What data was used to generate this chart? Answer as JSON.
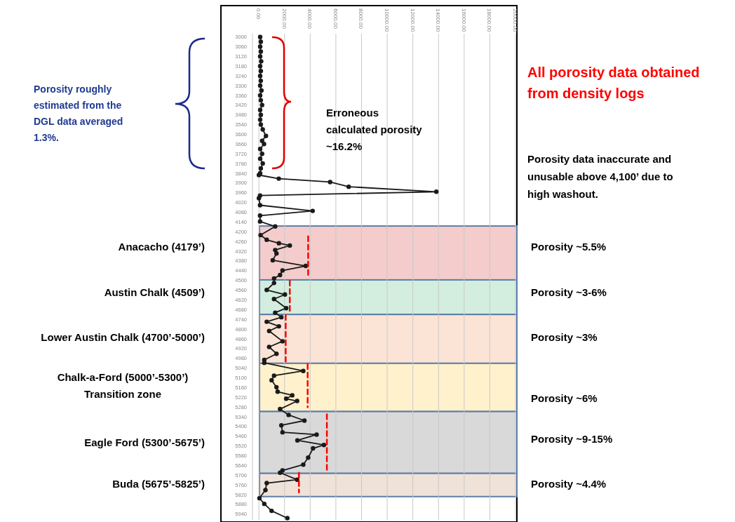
{
  "chart_data": {
    "type": "line",
    "orientation": "horizontal",
    "xlim": [
      -500,
      20000
    ],
    "xticks": [
      {
        "value": 0,
        "label": "0.00"
      },
      {
        "value": 2000,
        "label": "2000.00"
      },
      {
        "value": 4000,
        "label": "4000.00"
      },
      {
        "value": 6000,
        "label": "6000.00"
      },
      {
        "value": 8000,
        "label": "8000.00"
      },
      {
        "value": 10000,
        "label": "10000.00"
      },
      {
        "value": 12000,
        "label": "12000.00"
      },
      {
        "value": 14000,
        "label": "14000.00"
      },
      {
        "value": 16000,
        "label": "16000.00"
      },
      {
        "value": 18000,
        "label": "18000.00"
      },
      {
        "value": 20000,
        "label": "20000.00"
      }
    ],
    "ylim": [
      5980,
      2980
    ],
    "yticks": [
      3000,
      3060,
      3120,
      3180,
      3240,
      3300,
      3360,
      3420,
      3480,
      3540,
      3600,
      3660,
      3720,
      3780,
      3840,
      3900,
      3960,
      4020,
      4080,
      4140,
      4200,
      4260,
      4320,
      4380,
      4440,
      4500,
      4560,
      4620,
      4680,
      4740,
      4800,
      4860,
      4920,
      4980,
      5040,
      5100,
      5160,
      5220,
      5280,
      5340,
      5400,
      5460,
      5520,
      5580,
      5640,
      5700,
      5760,
      5820,
      5880,
      5940
    ],
    "grid": "x",
    "series": [
      {
        "color": "#1a1a1a",
        "marker": "circle",
        "values": [
          100,
          150,
          100,
          150,
          100,
          180,
          100,
          150,
          100,
          150,
          100,
          200,
          100,
          150,
          250,
          100,
          150,
          100,
          150,
          300,
          550,
          250,
          400,
          100,
          250,
          100,
          300,
          150,
          100,
          0,
          1550,
          5550,
          7000,
          13830,
          90,
          0,
          90,
          4190,
          90,
          90,
          1270,
          130,
          610,
          1560,
          2410,
          1270,
          1370,
          1080,
          3650,
          1840,
          1650,
          1180,
          1180,
          610,
          2030,
          1180,
          2130,
          1270,
          1750,
          610,
          1560,
          800,
          1840,
          800,
          1370,
          420,
          420,
          3460,
          1180,
          990,
          1370,
          1460,
          2600,
          2130,
          2980,
          1650,
          2320,
          3550,
          1750,
          1840,
          4500,
          3000,
          5070,
          4220,
          3840,
          3460,
          1840,
          1650,
          2980,
          610,
          510,
          40,
          420,
          990,
          2220
        ],
        "x": [
          3000,
          3030,
          3060,
          3090,
          3120,
          3150,
          3180,
          3210,
          3240,
          3270,
          3300,
          3330,
          3360,
          3390,
          3420,
          3450,
          3480,
          3510,
          3540,
          3570,
          3610,
          3640,
          3660,
          3690,
          3720,
          3750,
          3780,
          3810,
          3840,
          3851,
          3873,
          3894,
          3923,
          3954,
          3977,
          3994,
          4037,
          4072,
          4101,
          4137,
          4168,
          4221,
          4250,
          4271,
          4285,
          4313,
          4334,
          4376,
          4411,
          4439,
          4467,
          4488,
          4516,
          4559,
          4587,
          4615,
          4671,
          4699,
          4727,
          4755,
          4783,
          4812,
          4875,
          4910,
          4952,
          4990,
          5008,
          5058,
          5087,
          5115,
          5158,
          5186,
          5208,
          5229,
          5243,
          5293,
          5329,
          5364,
          5393,
          5436,
          5450,
          5486,
          5514,
          5535,
          5592,
          5635,
          5671,
          5685,
          5728,
          5749,
          5792,
          5842,
          5877,
          5920,
          5965
        ]
      },
      {
        "color": "#ff0000",
        "marker": "none",
        "line_style": "dashed",
        "values": [
          3840,
          3840
        ],
        "x": [
          4228,
          4467
        ]
      },
      {
        "color": "#ff0000",
        "marker": "none",
        "line_style": "dashed",
        "values": [
          2410,
          2410
        ],
        "x": [
          4502,
          4688
        ]
      },
      {
        "color": "#ff0000",
        "marker": "none",
        "line_style": "dashed",
        "values": [
          2090,
          2090
        ],
        "x": [
          4713,
          5000
        ]
      },
      {
        "color": "#ff0000",
        "marker": "none",
        "line_style": "dashed",
        "values": [
          3800,
          3800
        ],
        "x": [
          5016,
          5282
        ]
      },
      {
        "color": "#ff0000",
        "marker": "none",
        "line_style": "dashed",
        "values": [
          5300,
          5300
        ],
        "x": [
          5325,
          5671
        ]
      },
      {
        "color": "#ff0000",
        "marker": "none",
        "line_style": "dashed",
        "values": [
          3120,
          3120
        ],
        "x": [
          5685,
          5806
        ]
      }
    ],
    "bands": [
      {
        "axis": "y",
        "from": 4165,
        "to": 4497,
        "color": "#f4cccc"
      },
      {
        "axis": "y",
        "from": 4497,
        "to": 4710,
        "color": "#d3eedf"
      },
      {
        "axis": "y",
        "from": 4710,
        "to": 5011,
        "color": "#fbe4d6"
      },
      {
        "axis": "y",
        "from": 5011,
        "to": 5308,
        "color": "#fff1cc"
      },
      {
        "axis": "y",
        "from": 5308,
        "to": 5689,
        "color": "#d9d9d9"
      },
      {
        "axis": "y",
        "from": 5689,
        "to": 5832,
        "color": "#efe2d8"
      }
    ],
    "annotations": [
      "Porosity roughly\nestimated from the\nDGL data averaged\n1.3%.",
      "Erroneous\ncalculated porosity\n~16.2%",
      "All porosity data obtained\nfrom density logs",
      "Porosity data inaccurate and\nunusable above 4,100’ due to\nhigh washout.",
      "Porosity ~5.5%",
      "Porosity ~3-6%",
      "Porosity ~3%",
      "Porosity ~6%",
      "Porosity ~9-15%",
      "Porosity ~4.4%",
      "Anacacho (4179’)",
      "Austin Chalk (4509’)",
      "Lower Austin Chalk (4700’-5000’)",
      "Chalk-a-Ford (5000’-5300’)\nTransition zone",
      "Eagle Ford (5300’-5675’)",
      "Buda (5675’-5825’)"
    ]
  }
}
